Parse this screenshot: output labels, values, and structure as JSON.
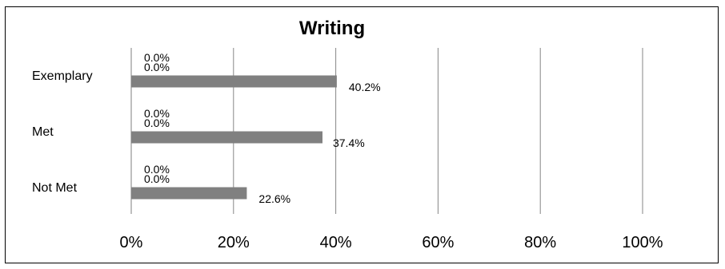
{
  "chart_data": {
    "type": "bar",
    "orientation": "horizontal",
    "title": "Writing",
    "categories": [
      "Exemplary",
      "Met",
      "Not Met"
    ],
    "series": [
      {
        "values": [
          0.0,
          0.0,
          0.0
        ]
      },
      {
        "values": [
          0.0,
          0.0,
          0.0
        ]
      },
      {
        "values": [
          40.2,
          37.4,
          22.6
        ]
      }
    ],
    "data_labels": [
      [
        "0.0%",
        "0.0%",
        "0.0%"
      ],
      [
        "0.0%",
        "0.0%",
        "0.0%"
      ],
      [
        "40.2%",
        "37.4%",
        "22.6%"
      ]
    ],
    "xlim": [
      0,
      100
    ],
    "x_ticks": [
      "0%",
      "20%",
      "40%",
      "60%",
      "80%",
      "100%"
    ],
    "grid": true,
    "legend": "none",
    "colors": {
      "bar": "#808080",
      "grid": "#868686"
    }
  }
}
